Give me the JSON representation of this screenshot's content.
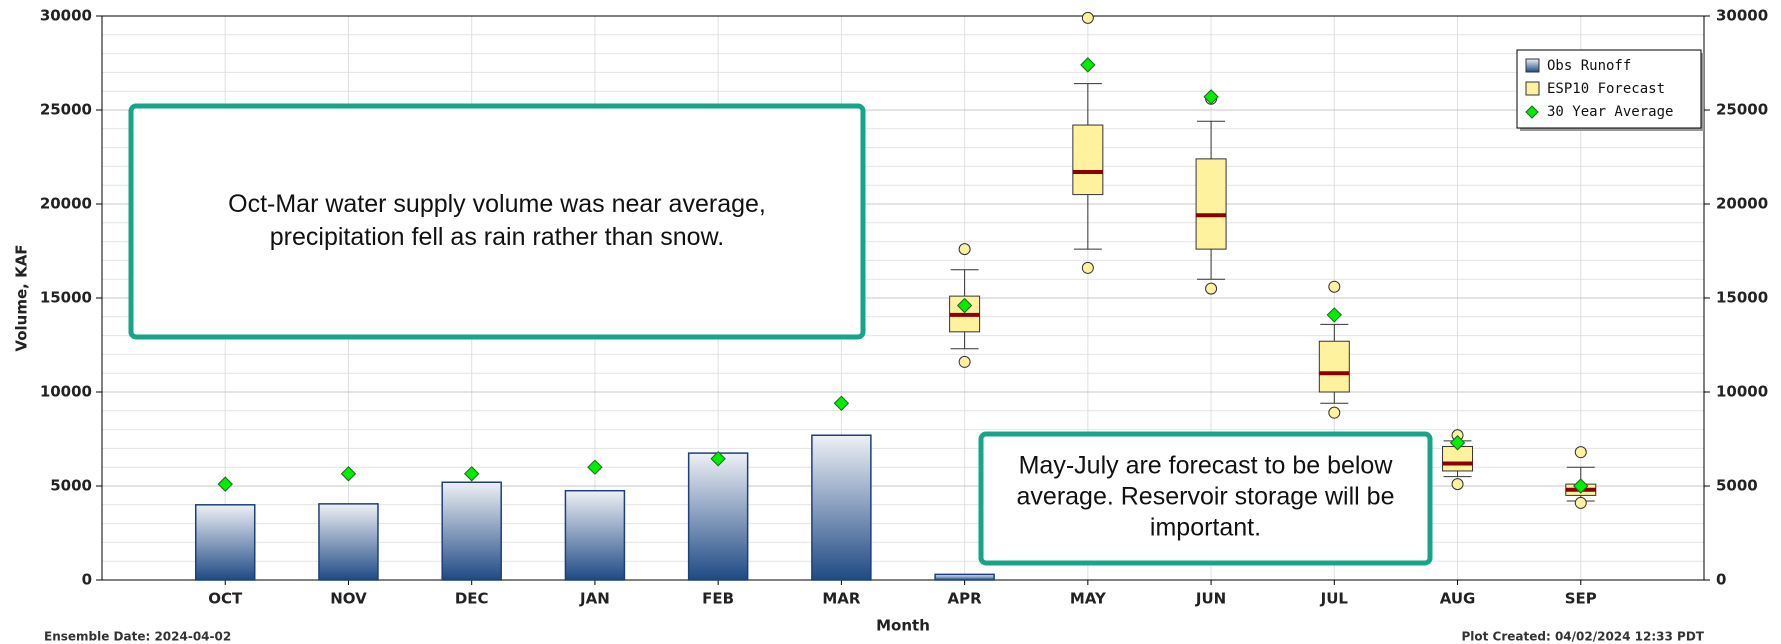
{
  "chart_data": {
    "type": "bar_box",
    "y_label": "Volume, KAF",
    "x_label": "Month",
    "categories": [
      "OCT",
      "NOV",
      "DEC",
      "JAN",
      "FEB",
      "MAR",
      "APR",
      "MAY",
      "JUN",
      "JUL",
      "AUG",
      "SEP"
    ],
    "ylim": [
      0,
      30000
    ],
    "yticks": [
      0,
      5000,
      10000,
      15000,
      20000,
      25000,
      30000
    ],
    "y2lim": [
      0,
      30000
    ],
    "y2ticks": [
      0,
      5000,
      10000,
      15000,
      20000,
      25000,
      30000
    ],
    "grid": true,
    "legend": "upper right",
    "series": [
      {
        "name": "Obs Runoff",
        "color": "#1f3f7a",
        "values": [
          4000,
          4050,
          5200,
          4750,
          6750,
          7700,
          300,
          null,
          null,
          null,
          null,
          null
        ]
      },
      {
        "name": "ESP10 Forecast",
        "color": "#fff29e",
        "low": [
          null,
          null,
          null,
          null,
          null,
          null,
          12300,
          17600,
          16000,
          9400,
          5500,
          4200
        ],
        "q1": [
          null,
          null,
          null,
          null,
          null,
          null,
          13200,
          20500,
          17600,
          10000,
          5800,
          4500
        ],
        "median": [
          null,
          null,
          null,
          null,
          null,
          null,
          14100,
          21700,
          19400,
          11000,
          6200,
          4800
        ],
        "q3": [
          null,
          null,
          null,
          null,
          null,
          null,
          15100,
          24200,
          22400,
          12700,
          7100,
          5100
        ],
        "high": [
          null,
          null,
          null,
          null,
          null,
          null,
          16500,
          26400,
          24400,
          13600,
          7400,
          6000
        ],
        "min": [
          null,
          null,
          null,
          null,
          null,
          null,
          11600,
          16600,
          15500,
          8900,
          5100,
          4100
        ],
        "max": [
          null,
          null,
          null,
          null,
          null,
          null,
          17600,
          29900,
          25600,
          15600,
          7700,
          6800
        ]
      },
      {
        "name": "30 Year Average",
        "color": "#00ee00",
        "values": [
          5100,
          5650,
          5650,
          6000,
          6450,
          9400,
          14600,
          27400,
          25700,
          14100,
          7300,
          5000
        ]
      }
    ],
    "annotations": [
      {
        "lines": [
          "Oct-Mar water supply volume was near average,",
          "precipitation fell as rain rather than snow."
        ]
      },
      {
        "lines": [
          "May-July are forecast to be below",
          "average. Reservoir storage will be",
          "important."
        ]
      }
    ],
    "footer_left": "Ensemble Date: 2024-04-02",
    "footer_right": "Plot Created: 04/02/2024 12:33 PDT"
  }
}
